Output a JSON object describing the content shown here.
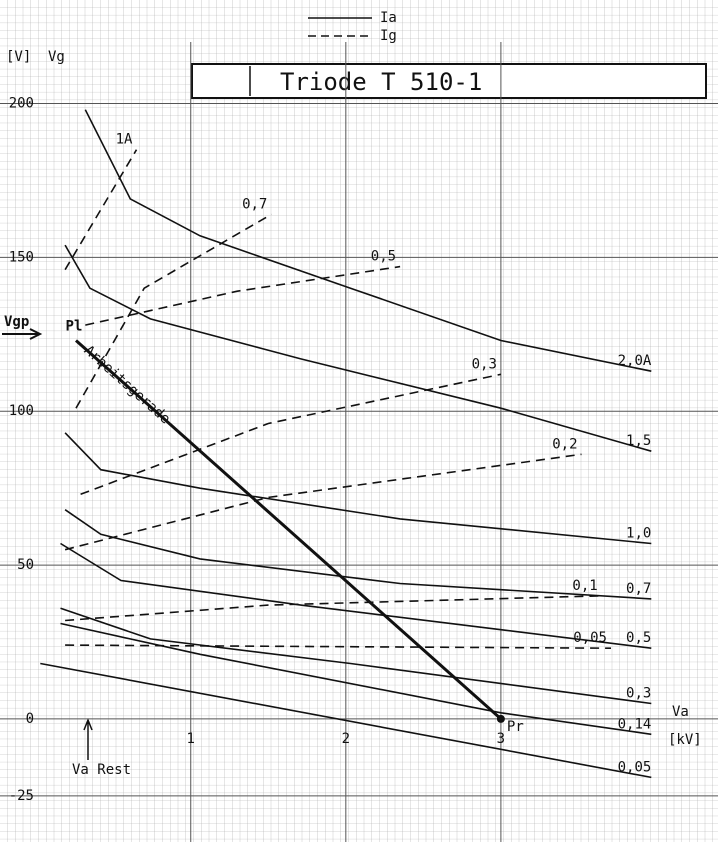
{
  "chart_data": {
    "type": "line",
    "title": "Triode T 510-1",
    "y_unit": "[V]",
    "y_label": "Vg",
    "x_label": "Va",
    "x_unit": "[kV]",
    "xlim": [
      -0.23,
      4.4
    ],
    "ylim": [
      -40,
      220
    ],
    "xticks": [
      1,
      2,
      3
    ],
    "yticks": [
      200,
      150,
      100,
      50,
      0,
      -25
    ],
    "grid": true,
    "color": "#111111",
    "legend": [
      {
        "label": "Ia",
        "dash": false
      },
      {
        "label": "Ig",
        "dash": true
      }
    ],
    "series": [
      {
        "name": "2,0A",
        "dash": false,
        "x": [
          0.32,
          0.61,
          1.06,
          2.03,
          3.0,
          3.97
        ],
        "values": [
          198,
          169,
          157,
          140,
          123,
          113
        ]
      },
      {
        "name": "1,5",
        "dash": false,
        "x": [
          0.19,
          0.35,
          0.74,
          1.71,
          3.0,
          3.97
        ],
        "values": [
          154,
          140,
          130,
          117,
          101,
          87
        ]
      },
      {
        "name": "1,0",
        "dash": false,
        "x": [
          0.19,
          0.42,
          1.06,
          2.35,
          3.97
        ],
        "values": [
          93,
          81,
          75,
          65,
          57
        ]
      },
      {
        "name": "0,7",
        "dash": false,
        "x": [
          0.19,
          0.42,
          1.06,
          2.35,
          3.97
        ],
        "values": [
          68,
          60,
          52,
          44,
          39
        ]
      },
      {
        "name": "0,5",
        "dash": false,
        "x": [
          0.16,
          0.55,
          1.71,
          3.0,
          3.97
        ],
        "values": [
          57,
          45,
          37,
          29,
          23
        ]
      },
      {
        "name": "0,3",
        "dash": false,
        "x": [
          0.16,
          0.74,
          2.03,
          3.97
        ],
        "values": [
          36,
          26,
          18,
          5
        ]
      },
      {
        "name": "0,14",
        "dash": false,
        "x": [
          0.16,
          1.06,
          3.0,
          3.97
        ],
        "values": [
          31,
          21,
          2,
          -5
        ]
      },
      {
        "name": "0,05",
        "dash": false,
        "x": [
          0.03,
          3.97
        ],
        "values": [
          18,
          -19
        ]
      },
      {
        "name": "1A",
        "dash": true,
        "x": [
          0.19,
          0.65
        ],
        "values": [
          146,
          185
        ]
      },
      {
        "name": "0,7",
        "dash": true,
        "x": [
          0.26,
          0.7,
          1.52
        ],
        "values": [
          101,
          140,
          164
        ]
      },
      {
        "name": "0,5",
        "dash": true,
        "x": [
          0.32,
          1.3,
          2.35
        ],
        "values": [
          128,
          139,
          147
        ]
      },
      {
        "name": "0,3",
        "dash": true,
        "x": [
          0.29,
          1.5,
          3.0
        ],
        "values": [
          73,
          96,
          112
        ]
      },
      {
        "name": "0,2",
        "dash": true,
        "x": [
          0.19,
          1.5,
          3.52
        ],
        "values": [
          55,
          72,
          86
        ]
      },
      {
        "name": "0,1",
        "dash": true,
        "x": [
          0.19,
          1.5,
          3.65
        ],
        "values": [
          32,
          37,
          40
        ]
      },
      {
        "name": "0,05",
        "dash": true,
        "x": [
          0.19,
          3.71
        ],
        "values": [
          24,
          23
        ]
      }
    ],
    "load_line": {
      "label": "Arbeitsgerade",
      "start_label": "Pl",
      "end_label": "Pr",
      "x": [
        0.26,
        3.0
      ],
      "values": [
        123,
        0
      ]
    },
    "annotations": {
      "vgp": "Vgp",
      "va_rest": "Va Rest"
    }
  }
}
